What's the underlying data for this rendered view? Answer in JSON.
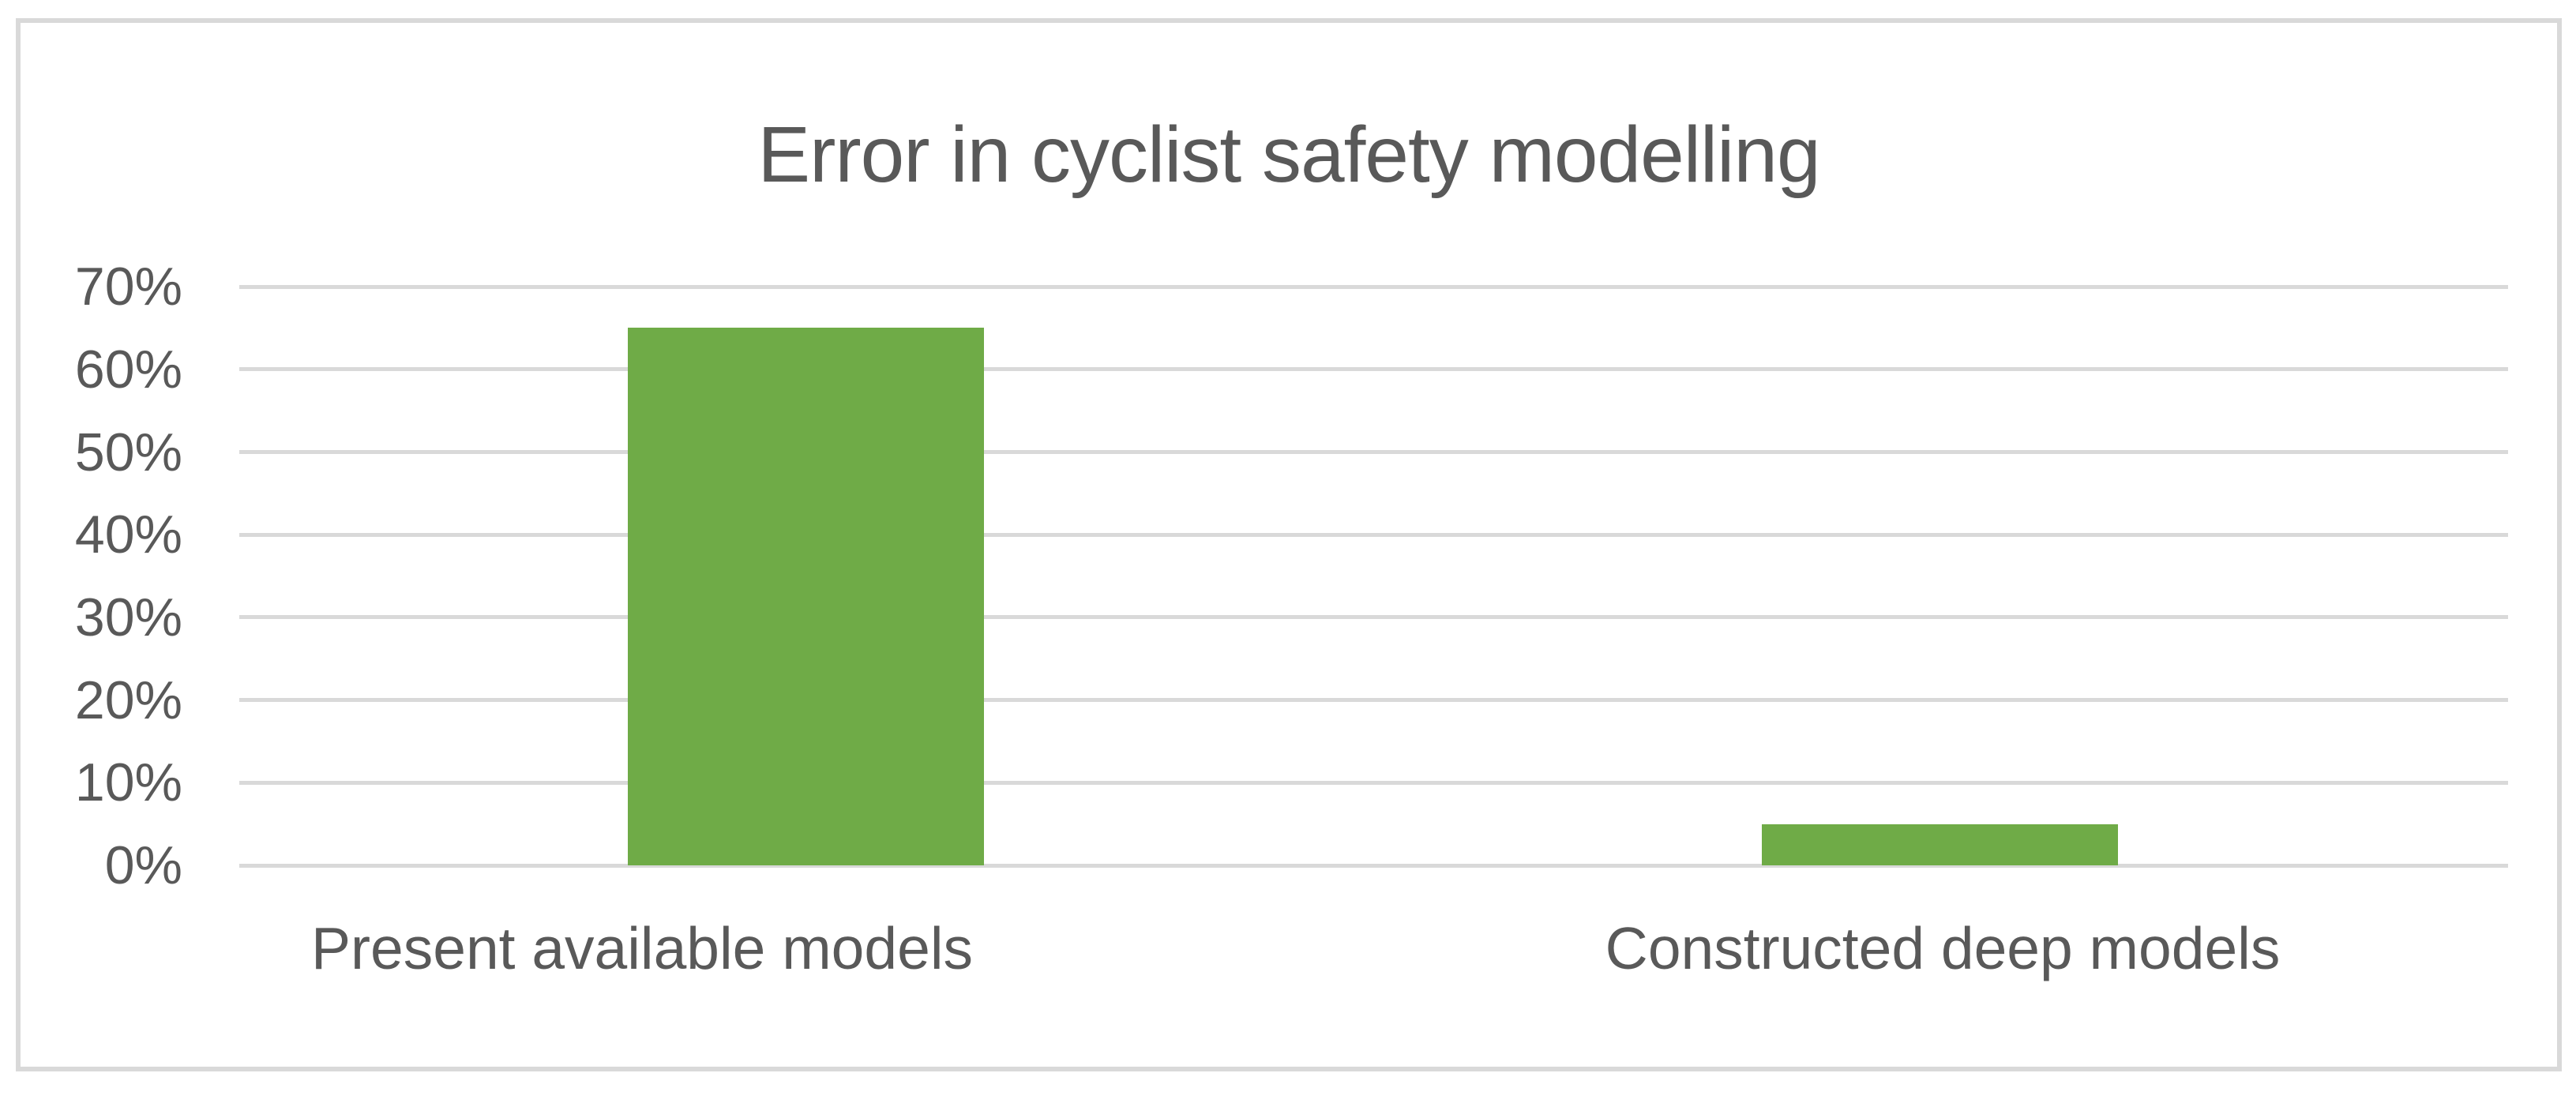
{
  "chart_data": {
    "type": "bar",
    "title": "Error in cyclist safety modelling",
    "categories": [
      "Present available models",
      "Constructed deep models"
    ],
    "values": [
      65,
      5
    ],
    "value_unit": "%",
    "series": [
      {
        "name": "Error",
        "values": [
          65,
          5
        ]
      }
    ],
    "xlabel": "",
    "ylabel": "",
    "ylim": [
      0,
      70
    ],
    "y_tick_labels": [
      "0%",
      "10%",
      "20%",
      "30%",
      "40%",
      "50%",
      "60%",
      "70%"
    ],
    "y_tick_values": [
      0,
      10,
      20,
      30,
      40,
      50,
      60,
      70
    ],
    "grid": "horizontal",
    "legend_position": "none",
    "colors": {
      "bar": "#6FAB47",
      "gridline": "#D9D9D9",
      "frame_border": "#D9D9D9",
      "text": "#595959",
      "background": "#FFFFFF"
    }
  }
}
